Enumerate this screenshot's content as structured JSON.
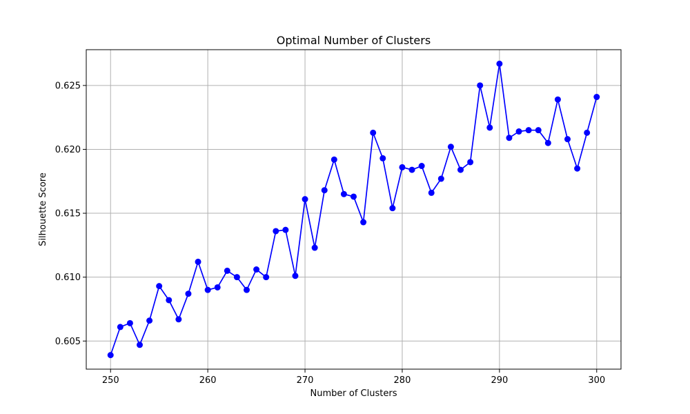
{
  "chart_data": {
    "type": "line",
    "title": "Optimal Number of Clusters",
    "xlabel": "Number of Clusters",
    "ylabel": "Silhouette Score",
    "xlim": [
      247.5,
      302.5
    ],
    "ylim": [
      0.6028,
      0.6278
    ],
    "xticks": [
      250,
      260,
      270,
      280,
      290,
      300
    ],
    "yticks": [
      0.605,
      0.61,
      0.615,
      0.62,
      0.625
    ],
    "ytick_labels": [
      "0.605",
      "0.610",
      "0.615",
      "0.620",
      "0.625"
    ],
    "grid": true,
    "line_color": "#0000ff",
    "marker": "circle",
    "series": [
      {
        "x": [
          250,
          251,
          252,
          253,
          254,
          255,
          256,
          257,
          258,
          259,
          260,
          261,
          262,
          263,
          264,
          265,
          266,
          267,
          268,
          269,
          270,
          271,
          272,
          273,
          274,
          275,
          276,
          277,
          278,
          279,
          280,
          281,
          282,
          283,
          284,
          285,
          286,
          287,
          288,
          289,
          290,
          291,
          292,
          293,
          294,
          295,
          296,
          297,
          298,
          299,
          300
        ],
        "values": [
          0.6039,
          0.6061,
          0.6064,
          0.6047,
          0.6066,
          0.6093,
          0.6082,
          0.6067,
          0.6087,
          0.6112,
          0.609,
          0.6092,
          0.6105,
          0.61,
          0.609,
          0.6106,
          0.61,
          0.6136,
          0.6137,
          0.6101,
          0.6161,
          0.6123,
          0.6168,
          0.6192,
          0.6165,
          0.6163,
          0.6143,
          0.6213,
          0.6193,
          0.6154,
          0.6186,
          0.6184,
          0.6187,
          0.6166,
          0.6177,
          0.6202,
          0.6184,
          0.619,
          0.625,
          0.6217,
          0.6267,
          0.6209,
          0.6214,
          0.6215,
          0.6215,
          0.6205,
          0.6239,
          0.6208,
          0.6185,
          0.6213,
          0.6241
        ]
      }
    ]
  }
}
